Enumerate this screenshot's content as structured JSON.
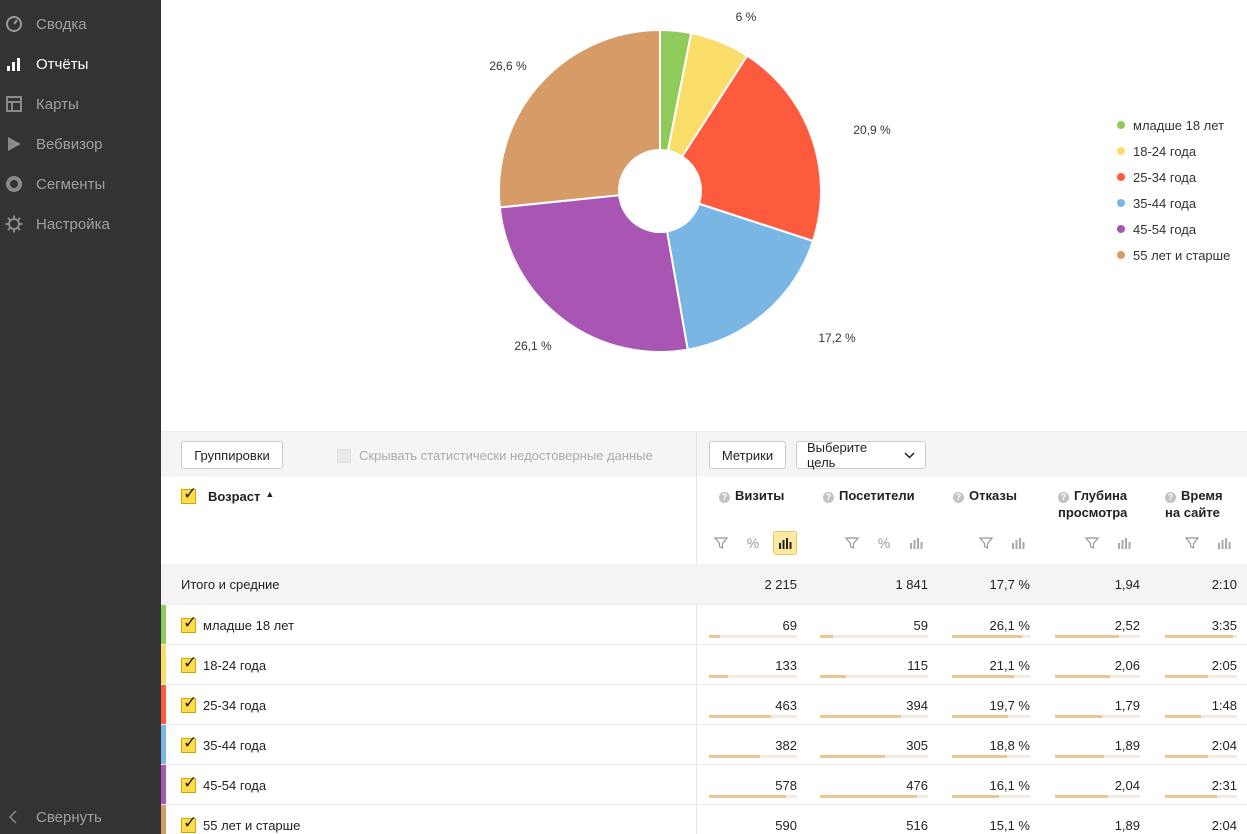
{
  "sidebar": {
    "items": [
      {
        "label": "Сводка",
        "icon": "dashboard-icon",
        "active": false
      },
      {
        "label": "Отчёты",
        "icon": "bar-chart-icon",
        "active": true
      },
      {
        "label": "Карты",
        "icon": "map-layout-icon",
        "active": false
      },
      {
        "label": "Вебвизор",
        "icon": "play-icon",
        "active": false
      },
      {
        "label": "Сегменты",
        "icon": "segment-ring-icon",
        "active": false
      },
      {
        "label": "Настройка",
        "icon": "gear-icon",
        "active": false
      }
    ],
    "collapse_label": "Свернуть"
  },
  "chart_data": {
    "type": "pie",
    "slices": [
      {
        "label": "младше 18 лет",
        "value": 3.1,
        "color": "#8ecb5a",
        "data_label": ""
      },
      {
        "label": "18-24 года",
        "value": 6.0,
        "color": "#fbde6a",
        "data_label": "6 %"
      },
      {
        "label": "25-34 года",
        "value": 20.9,
        "color": "#fd5a3e",
        "data_label": "20,9 %"
      },
      {
        "label": "35-44 года",
        "value": 17.2,
        "color": "#79b6e4",
        "data_label": "17,2 %"
      },
      {
        "label": "45-54 года",
        "value": 26.1,
        "color": "#a855b4",
        "data_label": "26,1 %"
      },
      {
        "label": "55 лет и старше",
        "value": 26.6,
        "color": "#d69b67",
        "data_label": "26,6 %"
      }
    ],
    "donut": true,
    "legend_position": "right"
  },
  "toolbar": {
    "groupings_label": "Группировки",
    "hide_unreliable_label": "Скрывать статистически недостоверные данные",
    "metrics_label": "Метрики",
    "goal_select_label": "Выберите цель"
  },
  "table": {
    "dimension_header": "Возраст",
    "sort_indicator": "▲",
    "columns": [
      {
        "label_line1": "Визиты",
        "label_line2": ""
      },
      {
        "label_line1": "Посетители",
        "label_line2": ""
      },
      {
        "label_line1": "Отказы",
        "label_line2": ""
      },
      {
        "label_line1": "Глубина",
        "label_line2": "просмотра"
      },
      {
        "label_line1": "Время",
        "label_line2": "на сайте"
      }
    ],
    "total": {
      "label": "Итого и средние",
      "values": [
        "2 215",
        "1 841",
        "17,7 %",
        "1,94",
        "2:10"
      ]
    },
    "rows": [
      {
        "label": "младше 18 лет",
        "color": "#8ecb5a",
        "values": [
          "69",
          "59",
          "26,1 %",
          "2,52",
          "3:35"
        ],
        "fills": [
          0.12,
          0.12,
          0.9,
          0.75,
          0.95
        ]
      },
      {
        "label": "18-24 года",
        "color": "#fbde6a",
        "values": [
          "133",
          "115",
          "21,1 %",
          "2,06",
          "2:05"
        ],
        "fills": [
          0.22,
          0.24,
          0.8,
          0.65,
          0.6
        ]
      },
      {
        "label": "25-34 года",
        "color": "#fd5a3e",
        "values": [
          "463",
          "394",
          "19,7 %",
          "1,79",
          "1:48"
        ],
        "fills": [
          0.7,
          0.75,
          0.72,
          0.55,
          0.5
        ]
      },
      {
        "label": "35-44 года",
        "color": "#79b6e4",
        "values": [
          "382",
          "305",
          "18,8 %",
          "1,89",
          "2:04"
        ],
        "fills": [
          0.58,
          0.6,
          0.7,
          0.58,
          0.6
        ]
      },
      {
        "label": "45-54 года",
        "color": "#a855b4",
        "values": [
          "578",
          "476",
          "16,1 %",
          "2,04",
          "2:31"
        ],
        "fills": [
          0.88,
          0.9,
          0.6,
          0.62,
          0.72
        ]
      },
      {
        "label": "55 лет и старше",
        "color": "#d69b67",
        "values": [
          "590",
          "516",
          "15,1 %",
          "1,89",
          "2:04"
        ],
        "fills": [
          0.9,
          0.95,
          0.55,
          0.58,
          0.6
        ]
      }
    ]
  }
}
